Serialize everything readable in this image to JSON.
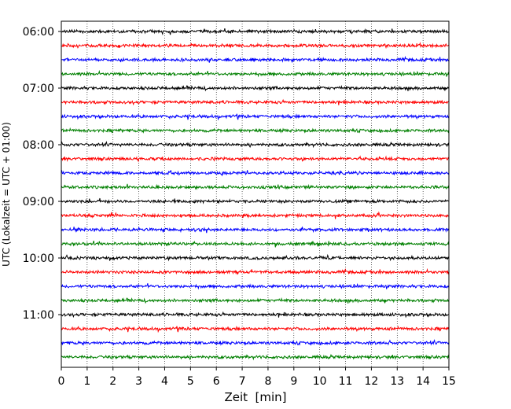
{
  "chart_data": {
    "type": "line",
    "subtype": "helicorder",
    "xlabel": "Zeit  [min]",
    "ylabel": "UTC (Lokalzeit = UTC + 01:00)",
    "xlim": [
      0,
      15
    ],
    "x_ticks": [
      0,
      1,
      2,
      3,
      4,
      5,
      6,
      7,
      8,
      9,
      10,
      11,
      12,
      13,
      14,
      15
    ],
    "y_tick_labels": [
      "06:00",
      "07:00",
      "08:00",
      "09:00",
      "10:00",
      "11:00"
    ],
    "trace_start": "06:00",
    "trace_end": "11:45",
    "trace_interval_min": 15,
    "trace_count": 24,
    "trace_colors": [
      "#000000",
      "#ff0000",
      "#0000ff",
      "#008000"
    ],
    "grid": "vertical dotted at each minute",
    "legend": "none"
  }
}
